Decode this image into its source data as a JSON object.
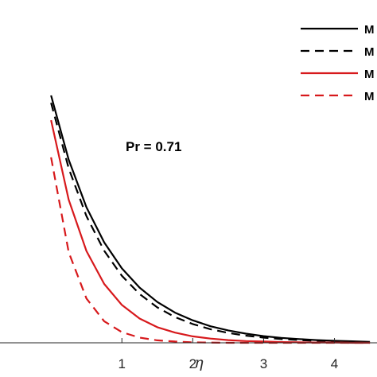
{
  "chart_data": {
    "type": "line",
    "title": "",
    "xlabel": "η",
    "ylabel": "",
    "xlim": [
      -0.72,
      4.6
    ],
    "ylim": [
      0,
      1.05
    ],
    "x_ticks": [
      1,
      2,
      3,
      4
    ],
    "x_tick_labels": [
      "1",
      "2",
      "3",
      "4"
    ],
    "grid": false,
    "legend_position": "top-right",
    "annotation": "Pr = 0.71",
    "colors": {
      "black": "#000000",
      "red": "#d7191c"
    },
    "x": [
      0,
      0.25,
      0.5,
      0.75,
      1,
      1.25,
      1.5,
      1.75,
      2,
      2.25,
      2.5,
      2.75,
      3,
      3.25,
      3.5,
      3.75,
      4,
      4.25,
      4.5
    ],
    "series": [
      {
        "name": "M",
        "color": "#000000",
        "dash": "solid",
        "values": [
          1.0,
          0.74,
          0.548,
          0.406,
          0.301,
          0.223,
          0.165,
          0.122,
          0.091,
          0.067,
          0.05,
          0.037,
          0.027,
          0.02,
          0.015,
          0.011,
          0.008,
          0.006,
          0.004
        ]
      },
      {
        "name": "M",
        "color": "#000000",
        "dash": "dashed",
        "values": [
          0.97,
          0.705,
          0.512,
          0.372,
          0.271,
          0.197,
          0.143,
          0.104,
          0.076,
          0.055,
          0.04,
          0.029,
          0.021,
          0.015,
          0.011,
          0.008,
          0.006,
          0.004,
          0.003
        ]
      },
      {
        "name": "M",
        "color": "#d7191c",
        "dash": "solid",
        "values": [
          0.9,
          0.578,
          0.371,
          0.238,
          0.153,
          0.098,
          0.063,
          0.041,
          0.026,
          0.017,
          0.011,
          0.007,
          0.005,
          0.003,
          0.002,
          0.001,
          0.001,
          0.0,
          0.0
        ]
      },
      {
        "name": "M",
        "color": "#d7191c",
        "dash": "dashed",
        "values": [
          0.75,
          0.366,
          0.179,
          0.087,
          0.043,
          0.021,
          0.01,
          0.005,
          0.002,
          0.001,
          0.0,
          0.0,
          0.0,
          0.0,
          0.0,
          0.0,
          0.0,
          0.0,
          0.0
        ]
      }
    ]
  }
}
